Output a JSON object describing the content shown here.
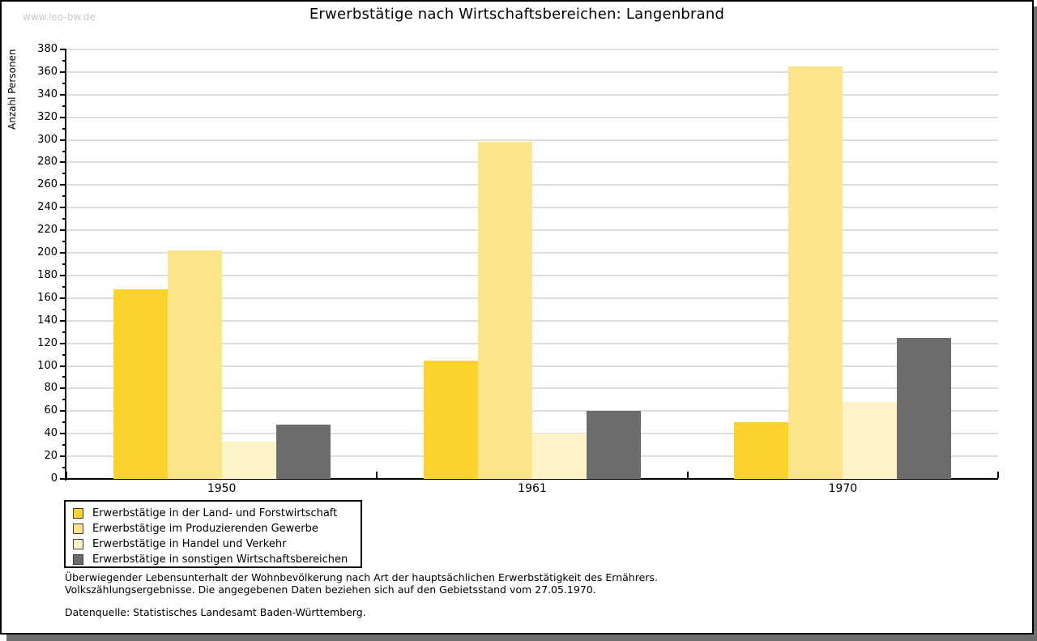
{
  "page": {
    "watermark": "www.leo-bw.de",
    "title": "Erwerbstätige nach Wirtschaftsbereichen: Langenbrand"
  },
  "chart_data": {
    "type": "bar",
    "title": "Erwerbstätige nach Wirtschaftsbereichen: Langenbrand",
    "xlabel": "",
    "ylabel": "Anzahl Personen",
    "categories": [
      "1950",
      "1961",
      "1970"
    ],
    "series": [
      {
        "name": "Erwerbstätige in der Land- und Forstwirtschaft",
        "color": "#FCD32C",
        "values": [
          168,
          105,
          50
        ]
      },
      {
        "name": "Erwerbstätige im Produzierenden Gewerbe",
        "color": "#FBE48A",
        "values": [
          202,
          298,
          365
        ]
      },
      {
        "name": "Erwerbstätige in Handel und Verkehr",
        "color": "#FCF3C6",
        "values": [
          33,
          40,
          68
        ]
      },
      {
        "name": "Erwerbstätige in sonstigen Wirtschaftsbereichen",
        "color": "#6C6C6C",
        "values": [
          48,
          60,
          125
        ]
      }
    ],
    "ylim": [
      0,
      380
    ],
    "ytick_step": 20,
    "yminor_step": 10,
    "grid": true,
    "legend_position": "bottom-left"
  },
  "footer": {
    "note_line1": "Überwiegender Lebensunterhalt der Wohnbevölkerung nach Art der hauptsächlichen Erwerbstätigkeit des Ernährers.",
    "note_line2": "Volkszählungsergebnisse. Die angegebenen Daten beziehen sich auf den Gebietsstand vom 27.05.1970.",
    "source": "Datenquelle: Statistisches Landesamt Baden-Württemberg."
  },
  "colors": {
    "grid": "#DEDEDE",
    "axis": "#000000",
    "watermark": "#C9C9C9",
    "frame_shadow": "#6E6E6E"
  }
}
